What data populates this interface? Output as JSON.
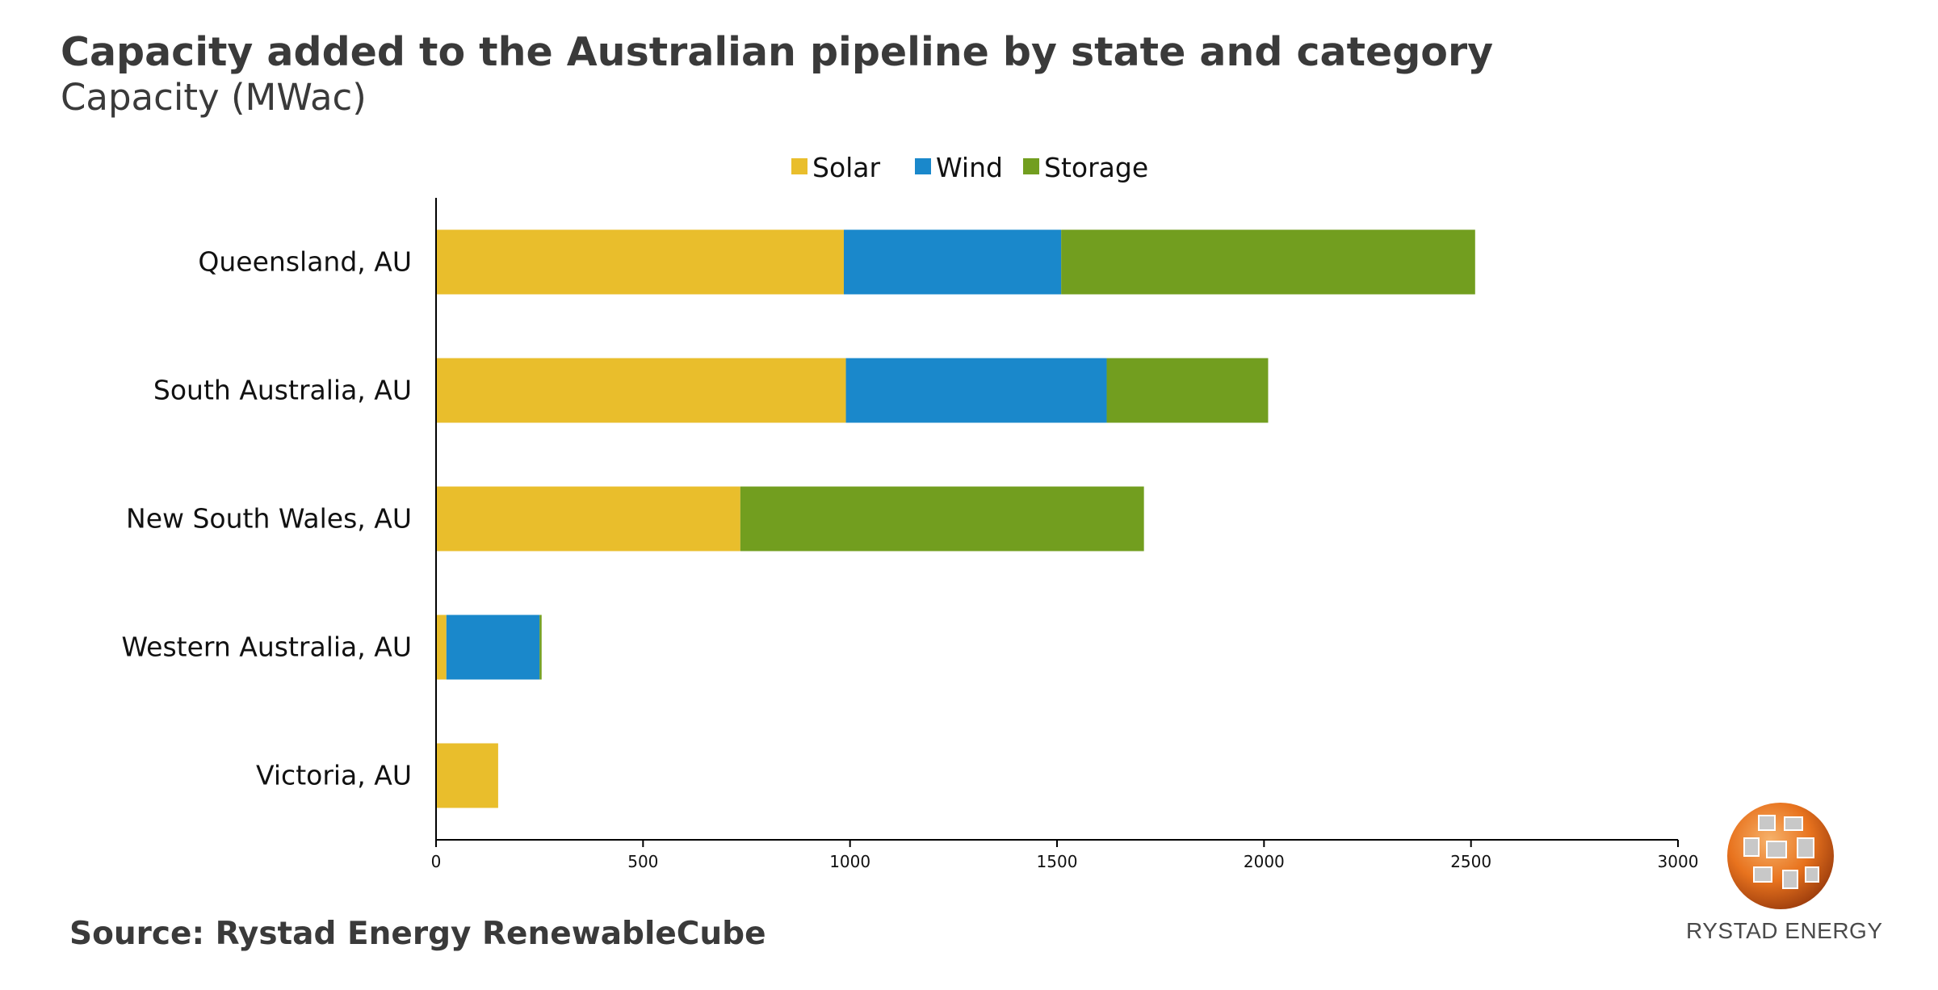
{
  "header": {
    "title": "Capacity added to the Australian pipeline by state and category",
    "subtitle": "Capacity (MWac)"
  },
  "footer": {
    "source": "Source: Rystad Energy RenewableCube",
    "brand": "RYSTAD ENERGY"
  },
  "colors": {
    "solar": "#E9BE2C",
    "wind": "#1A88CB",
    "storage": "#729E1F",
    "axis": "#000000"
  },
  "chart_data": {
    "type": "bar",
    "orientation": "horizontal",
    "stacked": true,
    "title": "Capacity added to the Australian pipeline by state and category",
    "subtitle": "Capacity (MWac)",
    "xlabel": "",
    "ylabel": "",
    "xlim": [
      0,
      3000
    ],
    "xticks": [
      0,
      500,
      1000,
      1500,
      2000,
      2500,
      3000
    ],
    "grid": false,
    "legend_position": "top-center",
    "categories": [
      "Queensland, AU",
      "South Australia, AU",
      "New South Wales, AU",
      "Western Australia, AU",
      "Victoria, AU"
    ],
    "series": [
      {
        "name": "Solar",
        "color": "#E9BE2C",
        "values": [
          985,
          990,
          735,
          25,
          150
        ]
      },
      {
        "name": "Wind",
        "color": "#1A88CB",
        "values": [
          525,
          630,
          0,
          225,
          0
        ]
      },
      {
        "name": "Storage",
        "color": "#729E1F",
        "values": [
          1000,
          390,
          975,
          5,
          0
        ]
      }
    ]
  }
}
